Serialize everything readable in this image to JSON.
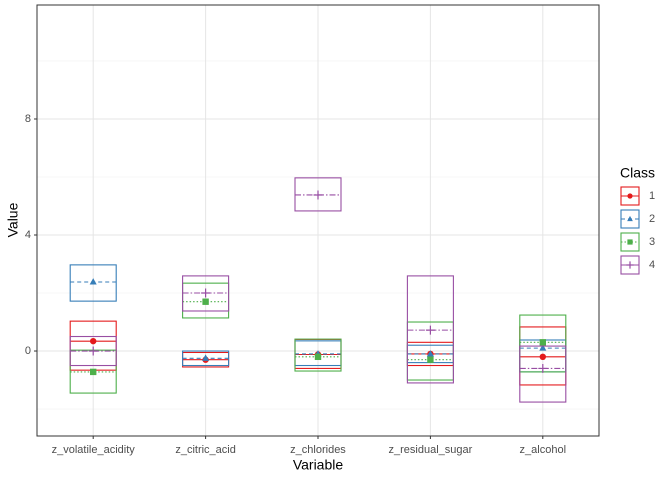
{
  "chart_data": {
    "type": "crossbar",
    "x_label": "Variable",
    "y_label": "Value",
    "categories": [
      "z_volatile_acidity",
      "z_citric_acid",
      "z_chlorides",
      "z_residual_sugar",
      "z_alcohol"
    ],
    "ylim": [
      -2.93,
      11.93
    ],
    "yticks": [
      0,
      4,
      8
    ],
    "grid": true,
    "legend_title": "Class",
    "legend_position": "right",
    "series": [
      {
        "name": "1",
        "color": "#e41a1c",
        "shape": "circle",
        "linetype": "solid",
        "low": [
          -0.66,
          -0.55,
          -0.6,
          -0.5,
          -1.17
        ],
        "mid": [
          0.34,
          -0.3,
          -0.12,
          -0.1,
          -0.2
        ],
        "high": [
          1.03,
          -0.05,
          0.4,
          0.3,
          0.83
        ]
      },
      {
        "name": "2",
        "color": "#377eb8",
        "shape": "triangle",
        "linetype": "dashed",
        "low": [
          1.72,
          -0.5,
          -0.5,
          -0.4,
          -0.72
        ],
        "mid": [
          2.38,
          -0.25,
          -0.1,
          -0.1,
          0.1
        ],
        "high": [
          2.97,
          0.0,
          0.35,
          0.2,
          0.38
        ]
      },
      {
        "name": "3",
        "color": "#4daf4a",
        "shape": "square",
        "linetype": "dotted",
        "low": [
          -1.45,
          1.14,
          -0.69,
          -1.0,
          -0.72
        ],
        "mid": [
          -0.72,
          1.7,
          -0.2,
          -0.3,
          0.3
        ],
        "high": [
          0.03,
          2.34,
          0.41,
          1.0,
          1.24
        ]
      },
      {
        "name": "4",
        "color": "#984ea3",
        "shape": "cross",
        "linetype": "dashdot",
        "low": [
          -0.5,
          1.38,
          4.83,
          -1.1,
          -1.76
        ],
        "mid": [
          0.0,
          2.0,
          5.38,
          0.72,
          -0.6
        ],
        "high": [
          0.5,
          2.59,
          5.97,
          2.59,
          0.17
        ]
      }
    ]
  }
}
